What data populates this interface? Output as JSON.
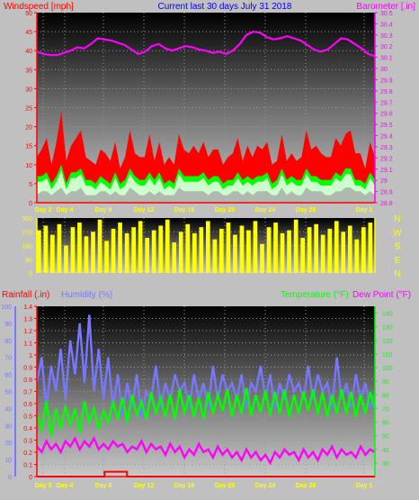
{
  "header": {
    "left": "Windspeed [mph]",
    "center": "Current last 30 days July 31 2018",
    "right": "Barometer [.in]"
  },
  "labels": {
    "rainfall": "Rainfall (.in)",
    "humidity": "Humidity (%)",
    "temperature": "Temperature (°F)",
    "dewpoint": "Dew Point (°F)"
  },
  "colors": {
    "wind_red": "#ff0000",
    "wind_green": "#00ff00",
    "wind_mint": "#ccffcc",
    "barometer": "#ff00ff",
    "direction": "#ffff00",
    "humidity": "#7777ff",
    "temperature": "#00ff00",
    "dewpoint": "#ff00ff",
    "rainfall": "#ff0000",
    "day_labels": "#ffff00"
  },
  "chart_data": [
    {
      "type": "area",
      "name": "wind",
      "left_axis": {
        "ticks": [
          0,
          5,
          10,
          15,
          20,
          25,
          30,
          35,
          40,
          45,
          50
        ],
        "ylim": [
          0,
          50
        ]
      },
      "right_axis": {
        "ticks": [
          "28.8",
          "28.9",
          "29",
          "29.1",
          "29.2",
          "29.3",
          "29.4",
          "29.5",
          "29.6",
          "29.7",
          "29.8",
          "29.9",
          "30",
          "30.1",
          "30.2",
          "30.3",
          "30.4",
          "30.5"
        ],
        "ylim": [
          28.8,
          30.5
        ]
      },
      "day_labels": [
        "Day 2",
        "Day 4",
        "Day 8",
        "Day 12",
        "Day 16",
        "Day 20",
        "Day 24",
        "Day 28",
        "Day 1"
      ],
      "series": [
        {
          "name": "gust",
          "values": [
            12,
            14,
            17,
            10,
            16,
            24,
            11,
            15,
            17,
            19,
            12,
            11,
            10,
            14,
            13,
            11,
            16,
            9,
            12,
            19,
            13,
            12,
            12,
            18,
            11,
            16,
            10,
            12,
            10,
            18,
            14,
            13,
            15,
            13,
            16,
            12,
            14,
            14,
            10,
            12,
            13,
            17,
            11,
            15,
            12,
            15,
            14,
            16,
            10,
            11,
            18,
            11,
            13,
            11,
            12,
            19,
            14,
            15,
            13,
            12,
            12,
            17,
            15,
            18,
            19,
            13,
            13,
            9,
            16,
            12
          ]
        },
        {
          "name": "average",
          "values": [
            7,
            7,
            8,
            5,
            7,
            10,
            5,
            8,
            8,
            9,
            6,
            6,
            5,
            7,
            6,
            5,
            8,
            5,
            6,
            9,
            7,
            6,
            6,
            8,
            6,
            8,
            5,
            6,
            5,
            9,
            7,
            7,
            7,
            7,
            8,
            6,
            7,
            7,
            5,
            6,
            6,
            8,
            6,
            7,
            6,
            7,
            7,
            8,
            5,
            6,
            9,
            6,
            7,
            6,
            6,
            9,
            7,
            7,
            6,
            6,
            6,
            8,
            7,
            9,
            9,
            6,
            6,
            5,
            8,
            6
          ]
        },
        {
          "name": "calm",
          "values": [
            2,
            3,
            3,
            2,
            3,
            4,
            2,
            3,
            3,
            4,
            2,
            2,
            2,
            3,
            3,
            2,
            3,
            2,
            2,
            4,
            3,
            2,
            2,
            3,
            2,
            3,
            2,
            2,
            2,
            4,
            3,
            3,
            3,
            3,
            3,
            2,
            3,
            3,
            2,
            2,
            3,
            3,
            2,
            3,
            2,
            3,
            3,
            3,
            2,
            2,
            4,
            2,
            3,
            2,
            2,
            4,
            3,
            3,
            3,
            2,
            2,
            3,
            3,
            4,
            4,
            3,
            3,
            2,
            3,
            2
          ]
        },
        {
          "name": "barometer",
          "values": [
            30.15,
            30.13,
            30.12,
            30.12,
            30.14,
            30.16,
            30.19,
            30.18,
            30.22,
            30.27,
            30.26,
            30.25,
            30.23,
            30.21,
            30.17,
            30.13,
            30.15,
            30.2,
            30.22,
            30.18,
            30.16,
            30.18,
            30.2,
            30.19,
            30.17,
            30.16,
            30.14,
            30.15,
            30.13,
            30.16,
            30.22,
            30.3,
            30.33,
            30.32,
            30.28,
            30.26,
            30.27,
            30.29,
            30.27,
            30.25,
            30.21,
            30.17,
            30.15,
            30.17,
            30.22,
            30.27,
            30.26,
            30.22,
            30.18,
            30.13,
            30.11
          ]
        }
      ]
    },
    {
      "type": "area",
      "name": "wind-direction",
      "left_axis": {
        "ticks": [
          0,
          90,
          180,
          270,
          360
        ],
        "ylim": [
          0,
          360
        ]
      },
      "right_axis": {
        "ticks": [
          "N",
          "W",
          "S",
          "E",
          "N"
        ]
      },
      "series": [
        {
          "name": "direction",
          "values": [
            280,
            310,
            250,
            320,
            180,
            300,
            330,
            240,
            270,
            350,
            210,
            290,
            330,
            260,
            300,
            340,
            230,
            280,
            310,
            350,
            200,
            270,
            320,
            260,
            300,
            340,
            220,
            290,
            330,
            250,
            310,
            280,
            340,
            190,
            300,
            330,
            260,
            280,
            350,
            230,
            300,
            320,
            250,
            290,
            340,
            270,
            310,
            220,
            300,
            330
          ]
        }
      ]
    },
    {
      "type": "line",
      "name": "weather",
      "left_axis_rain": {
        "ticks": [
          "0",
          "0.1",
          "0.2",
          "0.3",
          "0.4",
          "0.5",
          "0.6",
          "0.7",
          "0.8",
          "0.9",
          "1",
          "1.1",
          "1.2",
          "1.3",
          "1.4"
        ],
        "ylim": [
          0,
          1.4
        ]
      },
      "left_axis_humidity": {
        "ticks": [
          0,
          10,
          20,
          30,
          40,
          50,
          60,
          70,
          80,
          90,
          100
        ],
        "ylim": [
          0,
          100
        ]
      },
      "right_axis": {
        "ticks": [
          30,
          40,
          50,
          60,
          70,
          80,
          90,
          100,
          110,
          120,
          130,
          140
        ],
        "ylim": [
          20,
          145
        ]
      },
      "day_labels": [
        "Day 3",
        "Day 4",
        "Day 8",
        "Day 12",
        "Day 16",
        "Day 20",
        "Day 24",
        "Day 28",
        "Day 1"
      ],
      "series": [
        {
          "name": "humidity",
          "values": [
            55,
            70,
            40,
            65,
            50,
            75,
            45,
            80,
            60,
            90,
            55,
            95,
            50,
            75,
            45,
            70,
            40,
            60,
            35,
            55,
            40,
            60,
            35,
            50,
            45,
            65,
            40,
            55,
            45,
            60,
            50,
            55,
            40,
            60,
            45,
            55,
            40,
            65,
            45,
            60,
            50,
            55,
            45,
            60,
            40,
            55,
            50,
            65,
            45,
            60,
            40,
            55,
            45,
            60,
            50,
            55,
            45,
            65,
            45,
            60,
            50,
            55,
            40,
            70,
            45,
            55,
            40,
            60,
            45,
            55,
            40,
            50
          ]
        },
        {
          "name": "temperature",
          "values": [
            65,
            55,
            75,
            50,
            70,
            55,
            72,
            58,
            70,
            52,
            75,
            60,
            70,
            55,
            68,
            60,
            75,
            62,
            78,
            60,
            80,
            65,
            75,
            62,
            82,
            66,
            78,
            64,
            80,
            62,
            84,
            66,
            80,
            64,
            78,
            62,
            82,
            66,
            80,
            68,
            84,
            64,
            80,
            66,
            85,
            65,
            80,
            67,
            83,
            65,
            82,
            66,
            84,
            64,
            80,
            66,
            82,
            68,
            84,
            66,
            82,
            64,
            80,
            66,
            84,
            66,
            82,
            64,
            80,
            66,
            82,
            70
          ]
        },
        {
          "name": "dewpoint",
          "values": [
            42,
            38,
            46,
            40,
            44,
            38,
            46,
            42,
            48,
            40,
            46,
            42,
            48,
            40,
            44,
            40,
            46,
            42,
            44,
            38,
            42,
            40,
            46,
            38,
            44,
            40,
            42,
            36,
            44,
            38,
            42,
            34,
            40,
            36,
            44,
            38,
            40,
            34,
            42,
            36,
            40,
            34,
            38,
            32,
            40,
            34,
            38,
            32,
            36,
            30,
            38,
            34,
            40,
            36,
            38,
            32,
            40,
            34,
            38,
            32,
            40,
            36,
            42,
            34,
            40,
            36,
            38,
            34,
            42,
            36,
            40,
            38
          ]
        },
        {
          "name": "rainfall",
          "values": [
            0,
            0,
            0,
            0,
            0,
            0,
            0.04,
            0.04,
            0,
            0,
            0,
            0,
            0,
            0,
            0,
            0,
            0,
            0,
            0,
            0,
            0,
            0,
            0,
            0,
            0,
            0,
            0,
            0,
            0,
            0
          ]
        }
      ]
    }
  ]
}
